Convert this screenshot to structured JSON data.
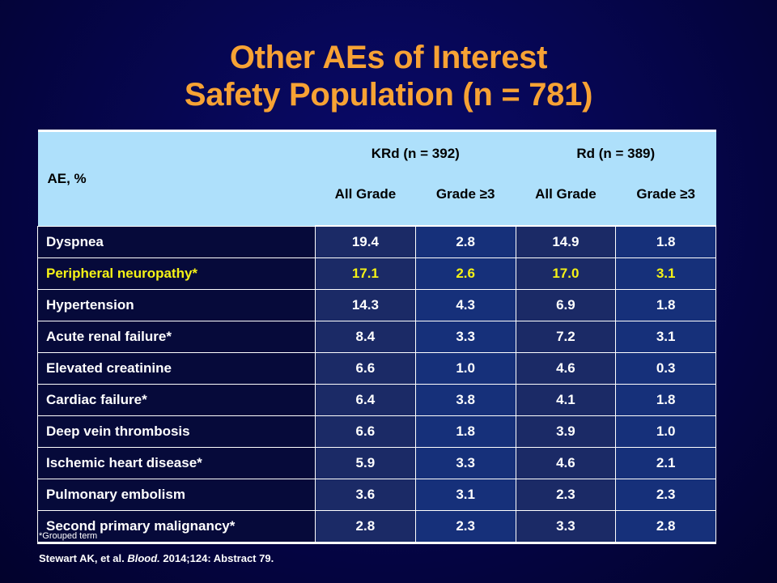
{
  "title": {
    "line1": "Other AEs of Interest",
    "line2": "Safety Population (n = 781)"
  },
  "table": {
    "ae_header": "AE, %",
    "groups": [
      "KRd (n = 392)",
      "Rd (n = 389)"
    ],
    "subheaders": [
      "All Grade",
      "Grade ≥3",
      "All Grade",
      "Grade ≥3"
    ],
    "rows": [
      {
        "name": "Dyspnea",
        "values": [
          "19.4",
          "2.8",
          "14.9",
          "1.8"
        ]
      },
      {
        "name": "Peripheral neuropathy*",
        "values": [
          "17.1",
          "2.6",
          "17.0",
          "3.1"
        ]
      },
      {
        "name": "Hypertension",
        "values": [
          "14.3",
          "4.3",
          "6.9",
          "1.8"
        ]
      },
      {
        "name": "Acute renal failure*",
        "values": [
          "8.4",
          "3.3",
          "7.2",
          "3.1"
        ]
      },
      {
        "name": "Elevated creatinine",
        "values": [
          "6.6",
          "1.0",
          "4.6",
          "0.3"
        ]
      },
      {
        "name": "Cardiac failure*",
        "values": [
          "6.4",
          "3.8",
          "4.1",
          "1.8"
        ]
      },
      {
        "name": "Deep vein thrombosis",
        "values": [
          "6.6",
          "1.8",
          "3.9",
          "1.0"
        ]
      },
      {
        "name": "Ischemic heart disease*",
        "values": [
          "5.9",
          "3.3",
          "4.6",
          "2.1"
        ]
      },
      {
        "name": "Pulmonary embolism",
        "values": [
          "3.6",
          "3.1",
          "2.3",
          "2.3"
        ]
      },
      {
        "name": "Second primary malignancy*",
        "values": [
          "2.8",
          "2.3",
          "3.3",
          "2.8"
        ]
      }
    ]
  },
  "footnote": "*Grouped term",
  "citation": {
    "authors": "Stewart AK, et al. ",
    "journal": "Blood.",
    "details": " 2014;124: Abstract 79."
  },
  "colors": {
    "title": "#f7a234",
    "header_bg": "#aee0fb",
    "highlight_text": "#f5f216"
  }
}
